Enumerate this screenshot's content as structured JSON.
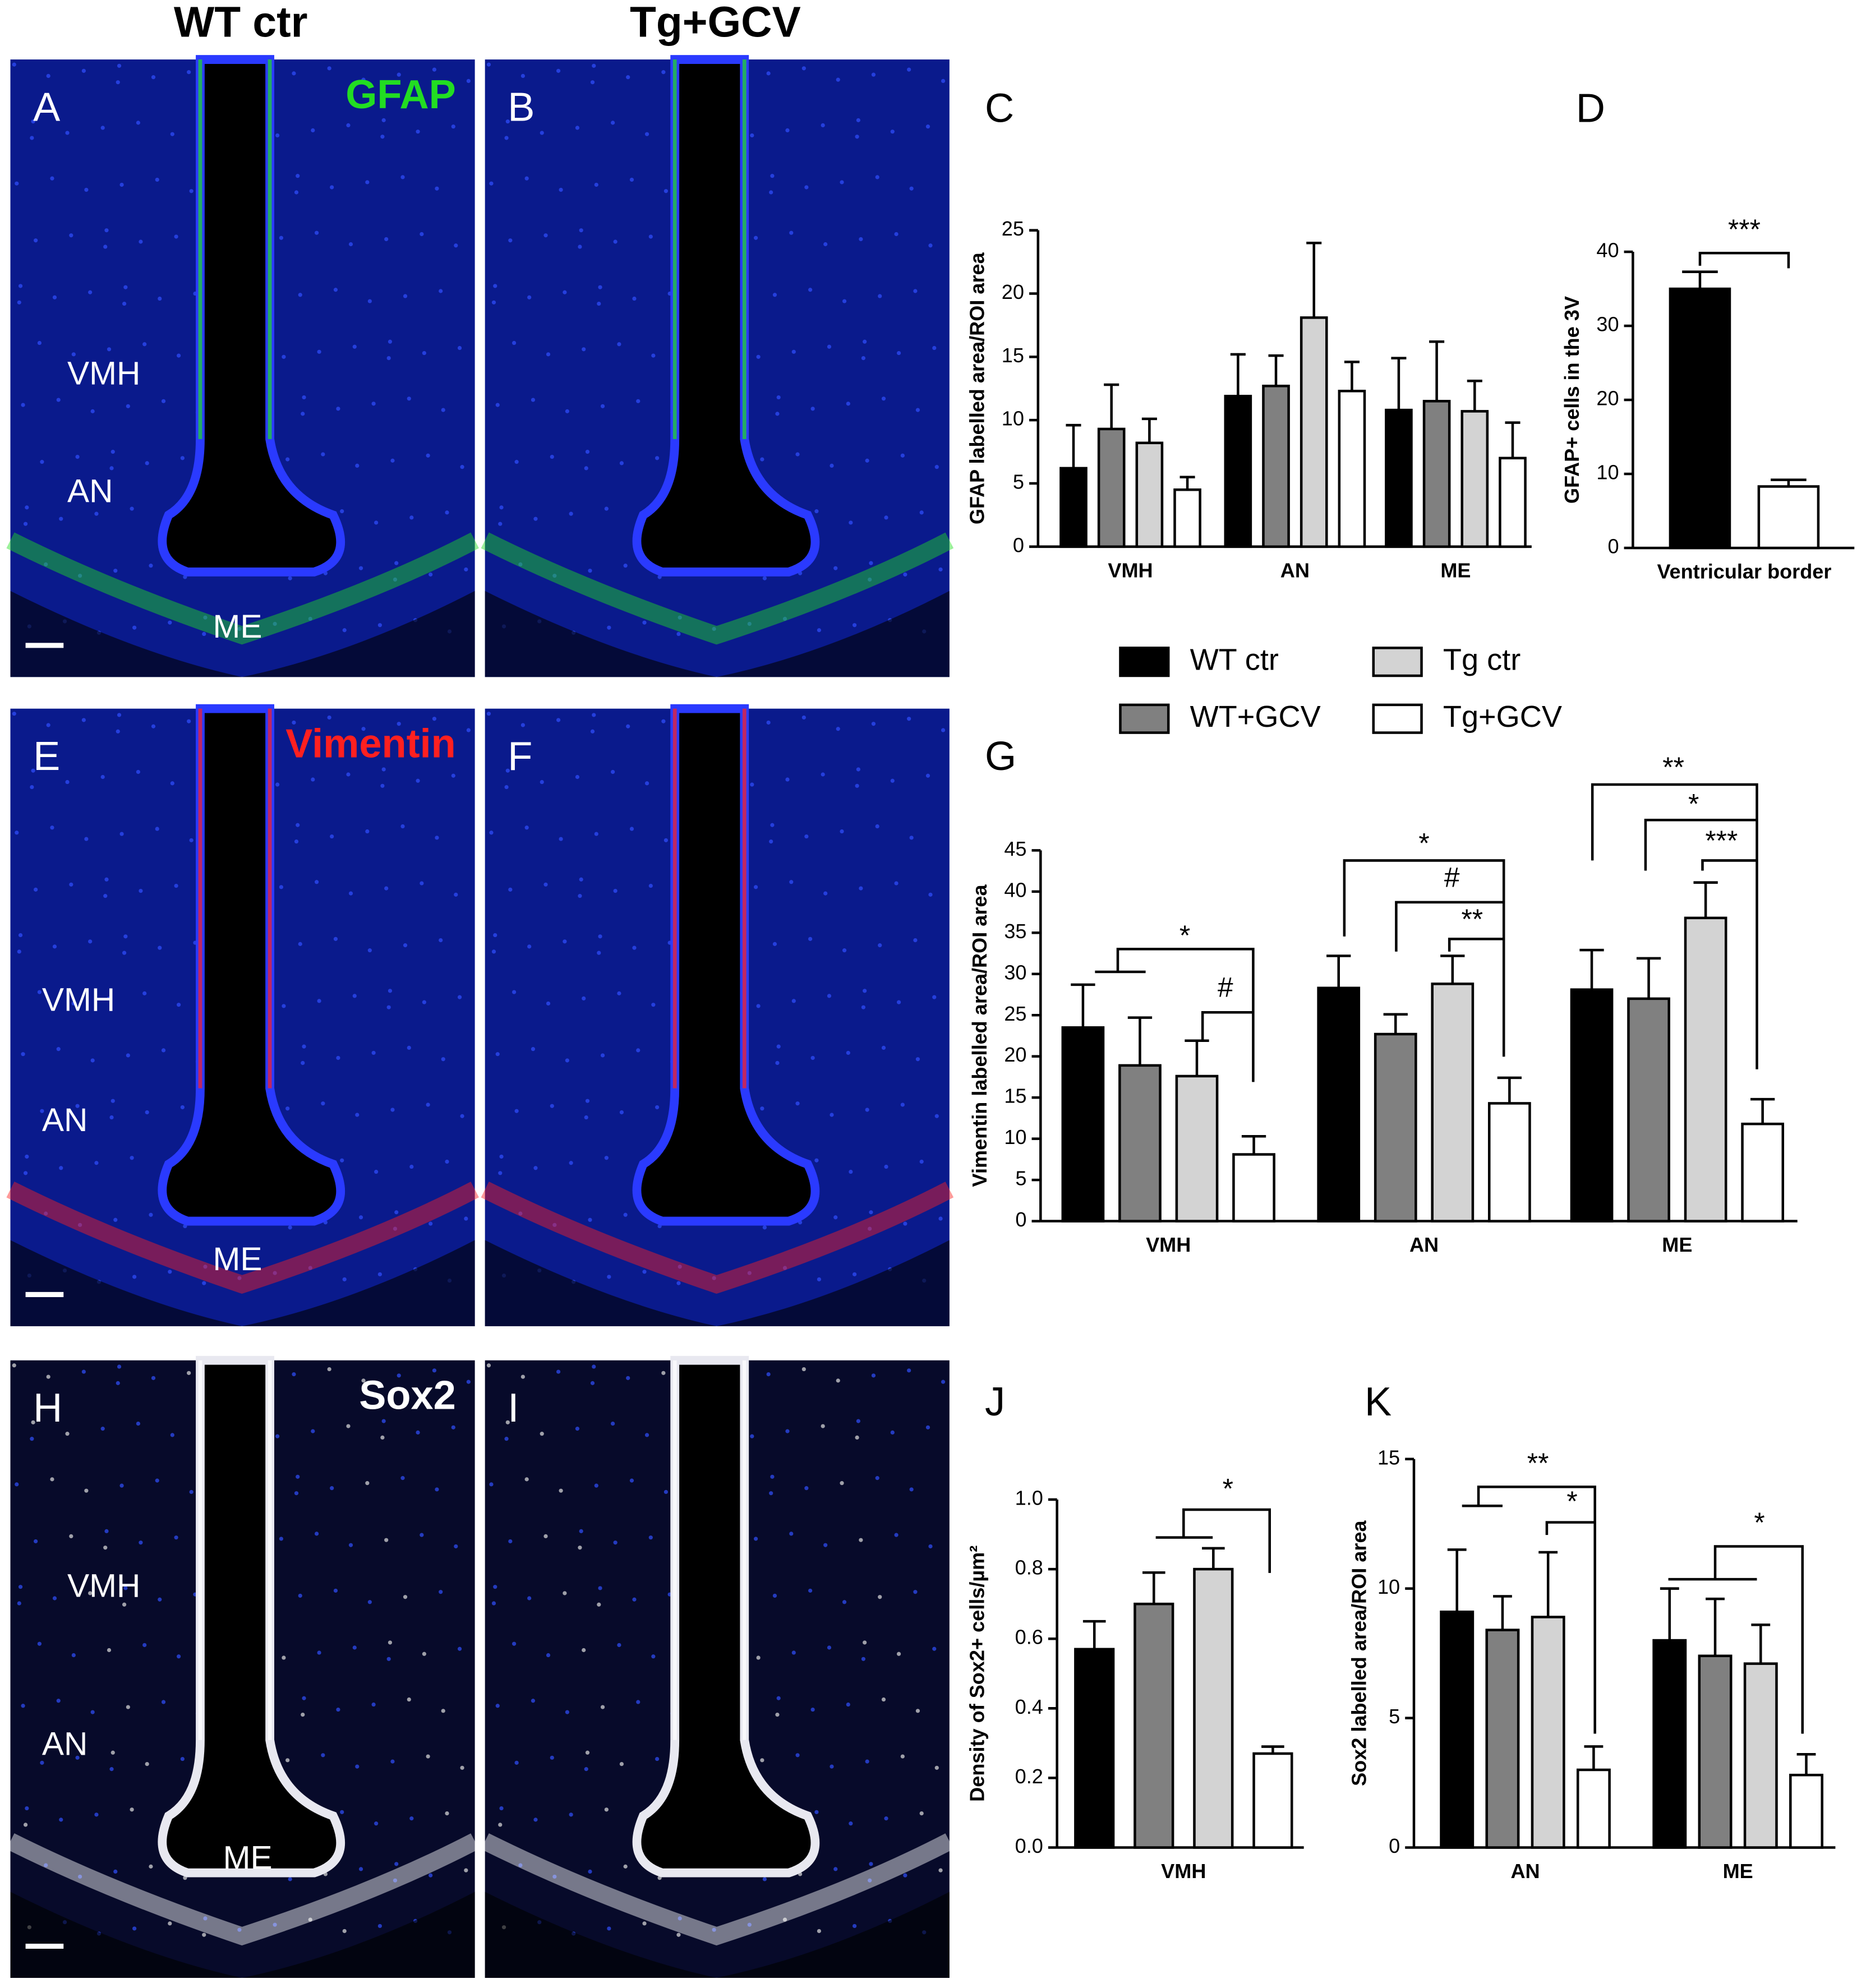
{
  "columns": [
    "WT ctr",
    "Tg+GCV"
  ],
  "images": [
    {
      "panel": "A",
      "stain": "GFAP",
      "regions": [
        "VMH",
        "AN",
        "ME"
      ]
    },
    {
      "panel": "B"
    },
    {
      "panel": "E",
      "stain": "Vimentin",
      "regions": [
        "VMH",
        "AN",
        "ME"
      ]
    },
    {
      "panel": "F"
    },
    {
      "panel": "H",
      "stain": "Sox2",
      "regions": [
        "VMH",
        "AN",
        "ME"
      ]
    },
    {
      "panel": "I"
    }
  ],
  "chart_data": [
    {
      "type": "bar",
      "panel": "C",
      "y_label": "GFAP labelled area/ROI area",
      "categories": [
        "VMH",
        "AN",
        "ME"
      ],
      "ylim": [
        0,
        25
      ],
      "yticks": [
        0,
        5,
        10,
        15,
        20,
        25
      ],
      "series": [
        {
          "color": "#000000",
          "values": [
            6.2,
            11.9,
            10.8
          ],
          "errors": [
            3.4,
            3.3,
            4.1
          ]
        },
        {
          "color": "#808080",
          "values": [
            9.3,
            12.7,
            11.5
          ],
          "errors": [
            3.5,
            2.4,
            4.7
          ]
        },
        {
          "color": "#d3d3d3",
          "values": [
            8.2,
            18.1,
            10.7
          ],
          "errors": [
            1.9,
            5.9,
            2.4
          ]
        },
        {
          "color": "#ffffff",
          "values": [
            4.5,
            12.3,
            7.0
          ],
          "errors": [
            1.0,
            2.3,
            2.8
          ]
        }
      ]
    },
    {
      "type": "bar",
      "panel": "D",
      "y_label": "GFAP+ cells in the 3V",
      "categories": [
        "Ventricular border"
      ],
      "ylim": [
        0,
        40
      ],
      "yticks": [
        0,
        10,
        20,
        30,
        40
      ],
      "series": [
        {
          "color": "#000000",
          "values": [
            35.0
          ],
          "errors": [
            2.3
          ]
        },
        {
          "color": "#ffffff",
          "values": [
            8.3
          ],
          "errors": [
            0.9
          ]
        }
      ],
      "annotations": [
        "***"
      ]
    },
    {
      "type": "bar",
      "panel": "G",
      "y_label": "Vimentin labelled area/ROI area",
      "categories": [
        "VMH",
        "AN",
        "ME"
      ],
      "ylim": [
        0,
        45
      ],
      "yticks": [
        0,
        5,
        10,
        15,
        20,
        25,
        30,
        35,
        40,
        45
      ],
      "series": [
        {
          "name": "WT ctr",
          "color": "#000000",
          "values": [
            23.5,
            28.3,
            28.1
          ],
          "errors": [
            5.2,
            3.9,
            4.8
          ]
        },
        {
          "name": "WT+GCV",
          "color": "#808080",
          "values": [
            18.9,
            22.7,
            27.0
          ],
          "errors": [
            5.8,
            2.4,
            4.9
          ]
        },
        {
          "name": "Tg ctr",
          "color": "#d3d3d3",
          "values": [
            17.6,
            28.8,
            36.8
          ],
          "errors": [
            4.3,
            3.4,
            4.3
          ]
        },
        {
          "name": "Tg+GCV",
          "color": "#ffffff",
          "values": [
            8.1,
            14.3,
            11.8
          ],
          "errors": [
            2.2,
            3.1,
            3.0
          ]
        }
      ],
      "annotations": [
        "*",
        "#",
        "*",
        "#",
        "**",
        "**",
        "*",
        "***"
      ]
    },
    {
      "type": "bar",
      "panel": "J",
      "y_label": "Density of Sox2+ cells/µm²",
      "categories": [
        "VMH"
      ],
      "ylim": [
        0,
        1
      ],
      "yticks": [
        {
          "value": 0,
          "label": "0.0"
        },
        0.2,
        0.4,
        0.6,
        0.8,
        {
          "value": 1,
          "label": "1.0"
        }
      ],
      "series": [
        {
          "color": "#000000",
          "values": [
            0.57
          ],
          "errors": [
            0.08
          ]
        },
        {
          "color": "#808080",
          "values": [
            0.7
          ],
          "errors": [
            0.09
          ]
        },
        {
          "color": "#d3d3d3",
          "values": [
            0.8
          ],
          "errors": [
            0.06
          ]
        },
        {
          "color": "#ffffff",
          "values": [
            0.27
          ],
          "errors": [
            0.02
          ]
        }
      ],
      "annotations": [
        "*"
      ]
    },
    {
      "type": "bar",
      "panel": "K",
      "y_label": "Sox2 labelled area/ROI area",
      "categories": [
        "AN",
        "ME"
      ],
      "ylim": [
        0,
        15
      ],
      "yticks": [
        0,
        5,
        10,
        15
      ],
      "series": [
        {
          "color": "#000000",
          "values": [
            9.1,
            8.0
          ],
          "errors": [
            2.4,
            2.0
          ]
        },
        {
          "color": "#808080",
          "values": [
            8.4,
            7.4
          ],
          "errors": [
            1.3,
            2.2
          ]
        },
        {
          "color": "#d3d3d3",
          "values": [
            8.9,
            7.1
          ],
          "errors": [
            2.5,
            1.5
          ]
        },
        {
          "color": "#ffffff",
          "values": [
            3.0,
            2.8
          ],
          "errors": [
            0.9,
            0.8
          ]
        }
      ],
      "annotations": [
        "**",
        "*",
        "*"
      ]
    }
  ]
}
